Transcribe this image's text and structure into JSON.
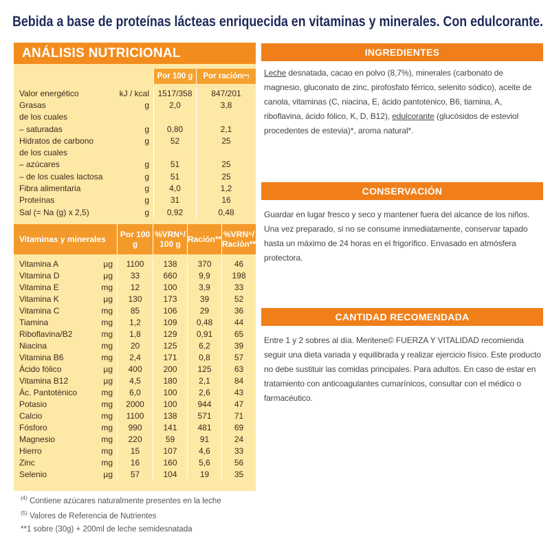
{
  "title": "Bebida a base de proteínas lácteas enriquecida en vitaminas y minerales. Con edulcorante.",
  "nutrition": {
    "title": "ANÁLISIS NUTRICIONAL",
    "col_per_100g": "Por 100 g",
    "col_per_serving": "Por ración",
    "col_per_serving_note": "(**)",
    "rows": [
      {
        "label": "Valor energético",
        "unit": "kJ / kcal",
        "per_100g": "1517/358",
        "per_serving": "847/201"
      },
      {
        "label": "Grasas",
        "unit": "g",
        "per_100g": "2,0",
        "per_serving": "3,8"
      },
      {
        "label": "de los cuales"
      },
      {
        "label": "– saturadas",
        "unit": "g",
        "per_100g": "0,80",
        "per_serving": "2,1"
      },
      {
        "label": "Hidratos de carbono",
        "unit": "g",
        "per_100g": "52",
        "per_serving": "25"
      },
      {
        "label": "de los cuales"
      },
      {
        "label": "– azúcares",
        "unit": "g",
        "per_100g": "51",
        "per_serving": "25"
      },
      {
        "label": "– de los cuales lactosa",
        "unit": "g",
        "per_100g": "51",
        "per_serving": "25"
      },
      {
        "label": "Fibra alimentaria",
        "unit": "g",
        "per_100g": "4,0",
        "per_serving": "1,2"
      },
      {
        "label": "Proteínas",
        "unit": "g",
        "per_100g": "31",
        "per_serving": "16"
      },
      {
        "label": "Sal (= Na (g) x 2,5)",
        "unit": "g",
        "per_100g": "0,92",
        "per_serving": "0,48"
      }
    ]
  },
  "vitamins": {
    "headers": [
      "Vitaminas y minerales",
      "Por 100 g",
      "%VRN⁵/ 100 g",
      "Ración**",
      "%VRN⁵/ Ración**"
    ],
    "rows": [
      [
        "Vitamina A",
        "µg",
        "1100",
        "138",
        "370",
        "46"
      ],
      [
        "Vitamina D",
        "µg",
        "33",
        "660",
        "9,9",
        "198"
      ],
      [
        "Vitamina E",
        "mg",
        "12",
        "100",
        "3,9",
        "33"
      ],
      [
        "Vitamina K",
        "µg",
        "130",
        "173",
        "39",
        "52"
      ],
      [
        "Vitamina C",
        "mg",
        "85",
        "106",
        "29",
        "36"
      ],
      [
        "Tiamina",
        "mg",
        "1,2",
        "109",
        "0,48",
        "44"
      ],
      [
        "Riboflavina/B2",
        "mg",
        "1,8",
        "129",
        "0,91",
        "65"
      ],
      [
        "Niacina",
        "mg",
        "20",
        "125",
        "6,2",
        "39"
      ],
      [
        "Vitamina B6",
        "mg",
        "2,4",
        "171",
        "0,8",
        "57"
      ],
      [
        "Ácido fólico",
        "µg",
        "400",
        "200",
        "125",
        "63"
      ],
      [
        "Vitamina B12",
        "µg",
        "4,5",
        "180",
        "2,1",
        "84"
      ],
      [
        "Ác. Pantoténico",
        "mg",
        "6,0",
        "100",
        "2,6",
        "43"
      ],
      [
        "Potasio",
        "mg",
        "2000",
        "100",
        "944",
        "47"
      ],
      [
        "Calcio",
        "mg",
        "1100",
        "138",
        "571",
        "71"
      ],
      [
        "Fósforo",
        "mg",
        "990",
        "141",
        "481",
        "69"
      ],
      [
        "Magnesio",
        "mg",
        "220",
        "59",
        "91",
        "24"
      ],
      [
        "Hierro",
        "mg",
        "15",
        "107",
        "4,6",
        "33"
      ],
      [
        "Zinc",
        "mg",
        "16",
        "160",
        "5,6",
        "56"
      ],
      [
        "Selenio",
        "µg",
        "57",
        "104",
        "19",
        "35"
      ]
    ]
  },
  "footnotes": [
    {
      "marker": "(4)",
      "text": "Contiene azúcares naturalmente presentes en la leche"
    },
    {
      "marker": "(5)",
      "text": "Valores de Referencia de Nutrientes"
    },
    {
      "marker": "**",
      "text": "1 sobre (30g) + 200ml de leche semidesnatada"
    }
  ],
  "ingredients": {
    "title": "INGREDIENTES",
    "parts": [
      "Leche",
      " desnatada, cacao en polvo (8,7%), minerales (carbonato de magnesio, gluconato de zinc, pirofosfato férrico, selenito sódico), aceite de canola, vitaminas (C, niacina, E, ácido pantoténico, B6, tiamina, A, riboflavina, ácido fólico, K, D, B12), ",
      "edulcorante",
      " (glucósidos de esteviol procedentes de estevia)*, aroma natural*."
    ]
  },
  "conservation": {
    "title": "CONSERVACIÓN",
    "text": "Guardar en lugar fresco y seco y mantener fuera del alcance de los niños. Una vez preparado, si no se consume inmediatamente, conservar tapado hasta un máximo de 24 horas en el frigorífico. Envasado en atmósfera protectora."
  },
  "recommended": {
    "title": "CANTIDAD RECOMENDADA",
    "text": "Entre 1 y 2 sobres al día. Meritene© FUERZA Y VITALIDAD recomienda seguir una dieta variada y equilibrada y realizar ejercicio físico. Este producto no debe sustituir las comidas principales. Para adultos. En caso de estar en tratamiento con anticoagulantes cumarínicos, consultar con el médico o farmacéutico."
  }
}
